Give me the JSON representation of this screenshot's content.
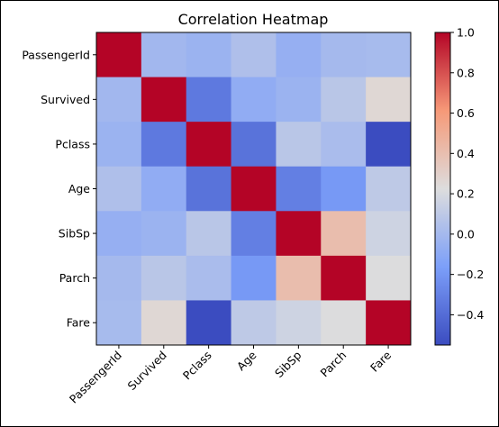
{
  "chart_data": {
    "type": "heatmap",
    "title": "Correlation Heatmap",
    "row_labels": [
      "PassengerId",
      "Survived",
      "Pclass",
      "Age",
      "SibSp",
      "Parch",
      "Fare"
    ],
    "col_labels": [
      "PassengerId",
      "Survived",
      "Pclass",
      "Age",
      "SibSp",
      "Parch",
      "Fare"
    ],
    "values": [
      [
        1.0,
        -0.01,
        -0.04,
        0.04,
        -0.06,
        -0.0,
        0.01
      ],
      [
        -0.01,
        1.0,
        -0.34,
        -0.08,
        -0.04,
        0.08,
        0.26
      ],
      [
        -0.04,
        -0.34,
        1.0,
        -0.37,
        0.08,
        0.02,
        -0.55
      ],
      [
        0.04,
        -0.08,
        -0.37,
        1.0,
        -0.31,
        -0.19,
        0.1
      ],
      [
        -0.06,
        -0.04,
        0.08,
        -0.31,
        1.0,
        0.41,
        0.16
      ],
      [
        -0.0,
        0.08,
        0.02,
        -0.19,
        0.41,
        1.0,
        0.22
      ],
      [
        0.01,
        0.26,
        -0.55,
        0.1,
        0.16,
        0.22,
        1.0
      ]
    ],
    "colormap": "coolwarm",
    "vmin": -0.55,
    "vmax": 1.0,
    "colorbar_ticks": [
      "1.0",
      "0.8",
      "0.6",
      "0.4",
      "0.2",
      "0.0",
      "−0.2",
      "−0.4"
    ],
    "colorbar_tick_values": [
      1.0,
      0.8,
      0.6,
      0.4,
      0.2,
      0.0,
      -0.2,
      -0.4
    ],
    "grid": false,
    "legend": "colorbar-right"
  }
}
